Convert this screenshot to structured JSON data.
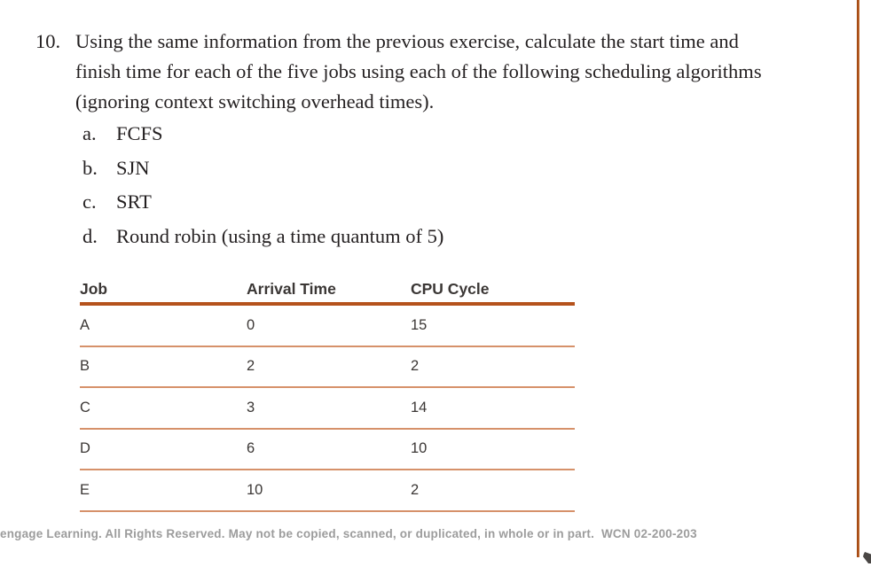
{
  "exercise": {
    "number": "10.",
    "lines": [
      "Using the same information from the previous exercise, calculate the start time and",
      "finish time for each of the five jobs using each of the following scheduling algorithms",
      "(ignoring context switching overhead times)."
    ],
    "items": [
      {
        "marker": "a.",
        "label": "FCFS"
      },
      {
        "marker": "b.",
        "label": "SJN"
      },
      {
        "marker": "c.",
        "label": "SRT"
      },
      {
        "marker": "d.",
        "label": "Round robin (using a time quantum of 5)"
      }
    ]
  },
  "table": {
    "columns": [
      "Job",
      "Arrival Time",
      "CPU Cycle"
    ],
    "rows": [
      {
        "job": "A",
        "arrival_time": "0",
        "cpu_cycle": "15"
      },
      {
        "job": "B",
        "arrival_time": "2",
        "cpu_cycle": "2"
      },
      {
        "job": "C",
        "arrival_time": "3",
        "cpu_cycle": "14"
      },
      {
        "job": "D",
        "arrival_time": "6",
        "cpu_cycle": "10"
      },
      {
        "job": "E",
        "arrival_time": "10",
        "cpu_cycle": "2"
      }
    ]
  },
  "footer": {
    "copyright": "engage Learning. All Rights Reserved. May not be copied, scanned, or duplicated, in whole or in part.  WCN 02-200-203"
  },
  "colors": {
    "accent_dark": "#b5521c",
    "accent_light": "#d6916a",
    "body_text": "#231f20",
    "table_text": "#3b3735",
    "footer_text": "#9c9c9c"
  }
}
